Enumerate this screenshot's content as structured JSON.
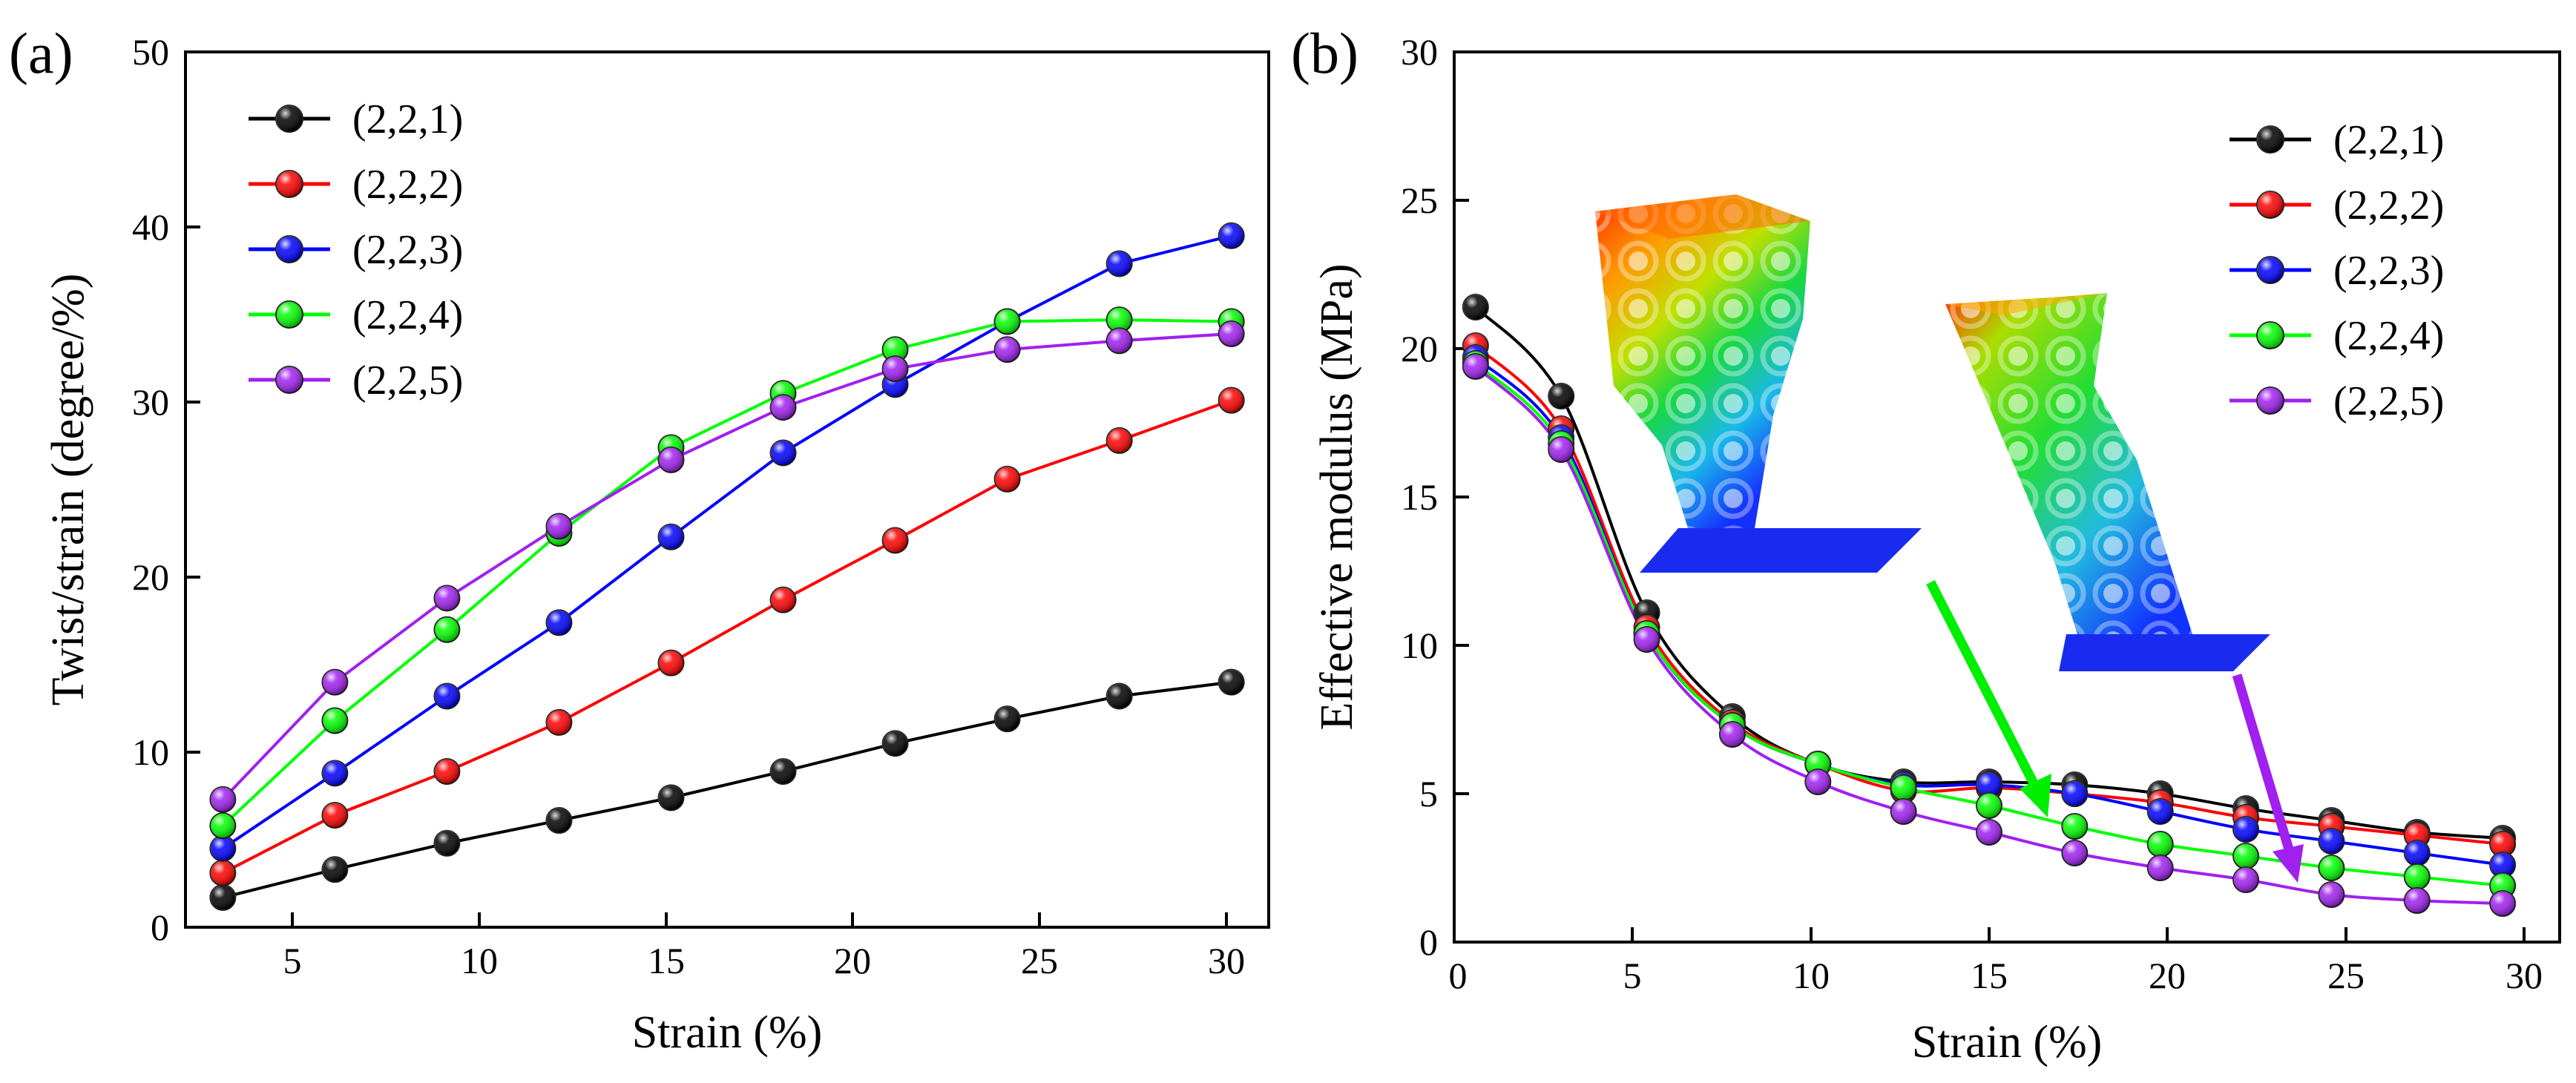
{
  "chart_data": [
    {
      "panel_label": "(a)",
      "type": "line",
      "xlabel": "Strain (%)",
      "ylabel": "Twist/strain (degree/%)",
      "xlim": [
        2,
        31
      ],
      "ylim": [
        0,
        50
      ],
      "xticks": [
        5,
        10,
        15,
        20,
        25,
        30
      ],
      "yticks": [
        0,
        10,
        20,
        30,
        40,
        50
      ],
      "grid": false,
      "legend_position": "top-left",
      "x": [
        3,
        6,
        9,
        12,
        15,
        18,
        21,
        24,
        27,
        30
      ],
      "series": [
        {
          "name": "(2,2,1)",
          "color": "#000000",
          "values": [
            1.7,
            3.3,
            4.8,
            6.1,
            7.4,
            8.9,
            10.5,
            11.9,
            13.2,
            14.0
          ]
        },
        {
          "name": "(2,2,2)",
          "color": "#ff0000",
          "values": [
            3.1,
            6.4,
            8.9,
            11.7,
            15.1,
            18.7,
            22.1,
            25.6,
            27.8,
            30.1
          ]
        },
        {
          "name": "(2,2,3)",
          "color": "#0000ff",
          "values": [
            4.5,
            8.8,
            13.2,
            17.4,
            22.3,
            27.1,
            31.0,
            34.6,
            37.9,
            39.5
          ]
        },
        {
          "name": "(2,2,4)",
          "color": "#00ff00",
          "values": [
            5.8,
            11.8,
            17.0,
            22.5,
            27.4,
            30.5,
            33.0,
            34.6,
            34.7,
            34.6
          ]
        },
        {
          "name": "(2,2,5)",
          "color": "#a020f0",
          "values": [
            7.3,
            14.0,
            18.8,
            22.9,
            26.7,
            29.7,
            31.9,
            33.0,
            33.5,
            33.9
          ]
        }
      ]
    },
    {
      "panel_label": "(b)",
      "type": "line",
      "xlabel": "Strain (%)",
      "ylabel": "Effective modulus (MPa)",
      "xlim": [
        0,
        31
      ],
      "ylim": [
        0,
        30
      ],
      "xticks": [
        0,
        5,
        10,
        15,
        20,
        25,
        30
      ],
      "yticks": [
        0,
        5,
        10,
        15,
        20,
        25,
        30
      ],
      "grid": false,
      "legend_position": "top-right",
      "x": [
        0.6,
        3.0,
        5.4,
        7.8,
        10.2,
        12.6,
        15.0,
        17.4,
        19.8,
        22.2,
        24.6,
        27.0,
        29.4
      ],
      "series": [
        {
          "name": "(2,2,1)",
          "color": "#000000",
          "values": [
            21.4,
            18.4,
            11.1,
            7.6,
            6.0,
            5.4,
            5.4,
            5.3,
            5.0,
            4.5,
            4.1,
            3.7,
            3.5
          ]
        },
        {
          "name": "(2,2,2)",
          "color": "#ff0000",
          "values": [
            20.1,
            17.3,
            10.6,
            7.4,
            6.0,
            5.1,
            5.2,
            5.0,
            4.7,
            4.2,
            3.9,
            3.6,
            3.3
          ]
        },
        {
          "name": "(2,2,3)",
          "color": "#0000ff",
          "values": [
            19.7,
            17.0,
            10.4,
            7.3,
            6.0,
            5.3,
            5.3,
            5.0,
            4.4,
            3.8,
            3.4,
            3.0,
            2.6
          ]
        },
        {
          "name": "(2,2,4)",
          "color": "#00ff00",
          "values": [
            19.5,
            16.8,
            10.4,
            7.3,
            6.0,
            5.2,
            4.6,
            3.9,
            3.3,
            2.9,
            2.5,
            2.2,
            1.9
          ]
        },
        {
          "name": "(2,2,5)",
          "color": "#a020f0",
          "values": [
            19.4,
            16.6,
            10.2,
            7.0,
            5.4,
            4.4,
            3.7,
            3.0,
            2.5,
            2.1,
            1.6,
            1.4,
            1.3
          ]
        }
      ],
      "insets": [
        {
          "name": "deformed-lattice-render-1",
          "arrow_color": "#00ff00",
          "arrow_target": [
            16.6,
            4.2
          ]
        },
        {
          "name": "deformed-lattice-render-2",
          "arrow_color": "#a020f0",
          "arrow_target": [
            23.6,
            2.0
          ]
        }
      ]
    }
  ]
}
